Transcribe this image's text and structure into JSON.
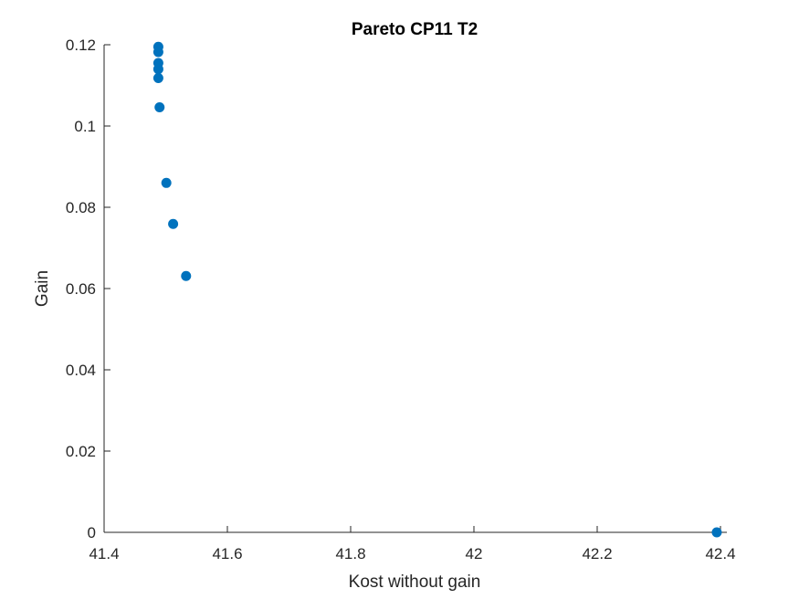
{
  "chart_data": {
    "type": "scatter",
    "title": "Pareto CP11 T2",
    "xlabel": "Kost without gain",
    "ylabel": "Gain",
    "xlim": [
      41.4,
      42.4
    ],
    "ylim": [
      0,
      0.12
    ],
    "xticks": [
      41.4,
      41.6,
      41.8,
      42,
      42.2,
      42.4
    ],
    "xtick_labels": [
      "41.4",
      "41.6",
      "41.8",
      "42",
      "42.2",
      "42.4"
    ],
    "yticks": [
      0,
      0.02,
      0.04,
      0.06,
      0.08,
      0.1,
      0.12
    ],
    "ytick_labels": [
      "0",
      "0.02",
      "0.04",
      "0.06",
      "0.08",
      "0.1",
      "0.12"
    ],
    "grid": false,
    "marker_color": "#0072BD",
    "series": [
      {
        "points": [
          {
            "x": 41.488,
            "y": 0.1195
          },
          {
            "x": 41.488,
            "y": 0.1182
          },
          {
            "x": 41.488,
            "y": 0.1155
          },
          {
            "x": 41.488,
            "y": 0.114
          },
          {
            "x": 41.488,
            "y": 0.1118
          },
          {
            "x": 41.49,
            "y": 0.1046
          },
          {
            "x": 41.501,
            "y": 0.086
          },
          {
            "x": 41.512,
            "y": 0.0759
          },
          {
            "x": 41.533,
            "y": 0.0631
          },
          {
            "x": 42.394,
            "y": 0.0
          }
        ]
      }
    ]
  }
}
